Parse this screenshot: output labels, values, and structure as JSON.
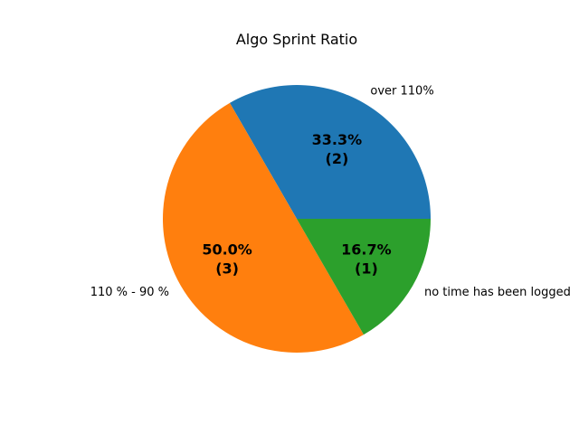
{
  "chart_data": {
    "type": "pie",
    "title": "Algo Sprint Ratio",
    "start_angle_deg": 0,
    "direction": "counterclockwise",
    "slices": [
      {
        "label": "over 110%",
        "value": 2,
        "percent_label": "33.3%",
        "count_label": "(2)",
        "color": "#1f77b4"
      },
      {
        "label": "110 % - 90 %",
        "value": 3,
        "percent_label": "50.0%",
        "count_label": "(3)",
        "color": "#ff7f0e"
      },
      {
        "label": "no time has been logged",
        "value": 1,
        "percent_label": "16.7%",
        "count_label": "(1)",
        "color": "#2ca02c"
      }
    ]
  }
}
